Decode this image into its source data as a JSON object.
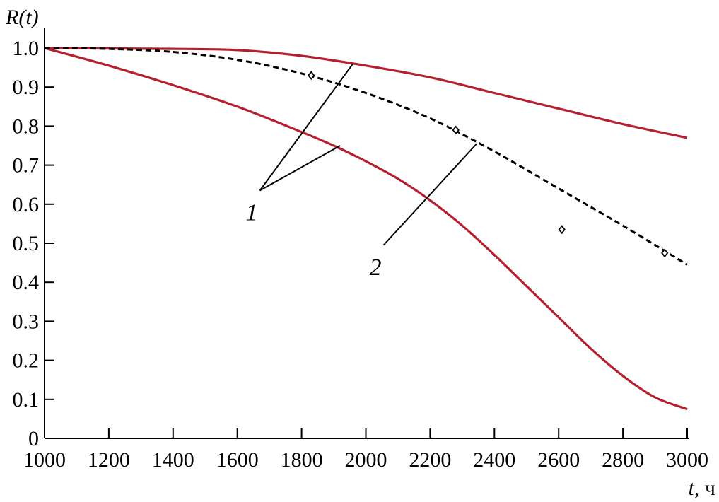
{
  "chart_data": {
    "type": "line",
    "ylabel": "R(t)",
    "xlabel_var": "t",
    "xlabel_unit": ", ч",
    "xlim": [
      1000,
      3000
    ],
    "ylim": [
      0,
      1.0
    ],
    "x_ticks": [
      1000,
      1200,
      1400,
      1600,
      1800,
      2000,
      2200,
      2400,
      2600,
      2800,
      3000
    ],
    "y_ticks": [
      0,
      0.1,
      0.2,
      0.3,
      0.4,
      0.5,
      0.6,
      0.7,
      0.8,
      0.9,
      1.0
    ],
    "y_tick_labels": [
      "0",
      "0.1",
      "0.2",
      "0.3",
      "0.4",
      "0.5",
      "0.6",
      "0.7",
      "0.8",
      "0.9",
      "1.0"
    ],
    "grid": false,
    "series": [
      {
        "id": "upper",
        "color": "#b5202e",
        "style": "solid",
        "x": [
          1000,
          1200,
          1400,
          1600,
          1800,
          2000,
          2200,
          2400,
          2600,
          2800,
          3000
        ],
        "y": [
          1.0,
          0.999,
          0.998,
          0.995,
          0.98,
          0.955,
          0.925,
          0.885,
          0.845,
          0.805,
          0.77
        ]
      },
      {
        "id": "lower",
        "color": "#b5202e",
        "style": "solid",
        "x": [
          1000,
          1200,
          1400,
          1600,
          1800,
          1900,
          2000,
          2100,
          2200,
          2300,
          2400,
          2500,
          2600,
          2700,
          2800,
          2900,
          3000
        ],
        "y": [
          1.0,
          0.955,
          0.905,
          0.85,
          0.785,
          0.75,
          0.71,
          0.665,
          0.61,
          0.545,
          0.47,
          0.39,
          0.31,
          0.23,
          0.16,
          0.105,
          0.075
        ]
      },
      {
        "id": "dashed",
        "color": "#000000",
        "style": "dashed",
        "x": [
          1000,
          1200,
          1400,
          1600,
          1800,
          2000,
          2200,
          2400,
          2600,
          2800,
          3000
        ],
        "y": [
          1.0,
          0.998,
          0.99,
          0.97,
          0.935,
          0.885,
          0.82,
          0.735,
          0.64,
          0.545,
          0.445
        ],
        "markers": [
          {
            "x": 1830,
            "y": 0.93
          },
          {
            "x": 2280,
            "y": 0.79
          },
          {
            "x": 2610,
            "y": 0.535
          },
          {
            "x": 2930,
            "y": 0.475
          }
        ]
      }
    ],
    "annotations": [
      {
        "text": "1",
        "anchor": {
          "x": 1670,
          "y": 0.635
        },
        "targets": [
          {
            "x": 1960,
            "y": 0.96
          },
          {
            "x": 1920,
            "y": 0.75
          }
        ]
      },
      {
        "text": "2",
        "anchor": {
          "x": 2055,
          "y": 0.495
        },
        "targets": [
          {
            "x": 2345,
            "y": 0.755
          }
        ]
      }
    ]
  }
}
